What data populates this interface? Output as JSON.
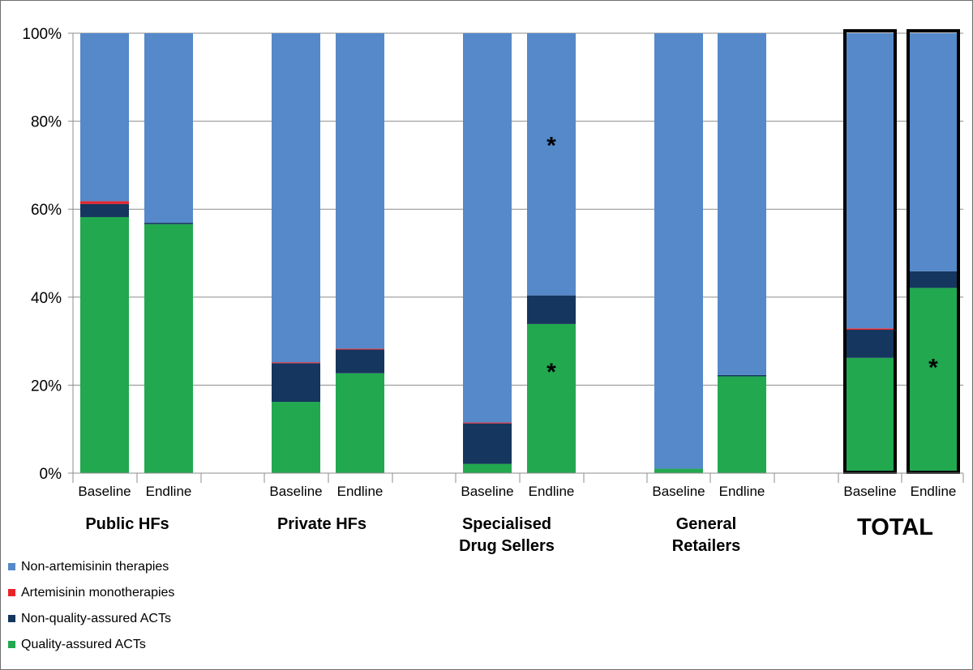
{
  "chart_data": {
    "type": "bar",
    "stacked": true,
    "percent_axis": true,
    "ylim": [
      0,
      100
    ],
    "yticks": [
      "0%",
      "20%",
      "40%",
      "60%",
      "80%",
      "100%"
    ],
    "grid": true,
    "legend_position": "bottom-left",
    "categories": [
      {
        "label": "Baseline",
        "group": "Public HFs"
      },
      {
        "label": "Endline",
        "group": "Public HFs"
      },
      {
        "label": "Baseline",
        "group": "Private HFs"
      },
      {
        "label": "Endline",
        "group": "Private HFs"
      },
      {
        "label": "Baseline",
        "group": "Specialised Drug Sellers"
      },
      {
        "label": "Endline",
        "group": "Specialised Drug Sellers"
      },
      {
        "label": "Baseline",
        "group": "General Retailers"
      },
      {
        "label": "Endline",
        "group": "General Retailers"
      },
      {
        "label": "Baseline",
        "group": "TOTAL"
      },
      {
        "label": "Endline",
        "group": "TOTAL"
      }
    ],
    "groups": [
      {
        "name": "Public HFs",
        "lines": [
          "Public HFs"
        ]
      },
      {
        "name": "Private HFs",
        "lines": [
          "Private HFs"
        ]
      },
      {
        "name": "Specialised Drug Sellers",
        "lines": [
          "Specialised",
          "Drug Sellers"
        ]
      },
      {
        "name": "General Retailers",
        "lines": [
          "General",
          "Retailers"
        ]
      },
      {
        "name": "TOTAL",
        "lines": [
          "TOTAL"
        ],
        "highlighted": true
      }
    ],
    "series": [
      {
        "name": "Quality-assured ACTs",
        "color": "#22a84f",
        "values": [
          58.2,
          56.6,
          16.2,
          22.7,
          2.1,
          33.9,
          1.0,
          22.0,
          26.2,
          42.1
        ]
      },
      {
        "name": "Non-quality-assured ACTs",
        "color": "#15365e",
        "values": [
          3.0,
          0.3,
          8.8,
          5.4,
          9.2,
          6.5,
          0.0,
          0.3,
          6.4,
          3.8
        ]
      },
      {
        "name": "Artemisinin monotherapies",
        "color": "#e8242b",
        "values": [
          0.6,
          0.0,
          0.2,
          0.2,
          0.2,
          0.0,
          0.0,
          0.0,
          0.3,
          0.0
        ]
      },
      {
        "name": "Non-artemisinin therapies",
        "color": "#5589c9",
        "values": [
          38.2,
          43.1,
          74.8,
          71.7,
          88.5,
          59.6,
          99.0,
          77.7,
          67.1,
          54.1
        ]
      }
    ],
    "annotations": [
      {
        "text": "*",
        "category_index": 5,
        "y": 76
      },
      {
        "text": "*",
        "category_index": 5,
        "y": 24.5
      },
      {
        "text": "*",
        "category_index": 9,
        "y": 25.5
      }
    ],
    "legend_order": [
      "Non-artemisinin therapies",
      "Artemisinin monotherapies",
      "Non-quality-assured ACTs",
      "Quality-assured ACTs"
    ]
  }
}
